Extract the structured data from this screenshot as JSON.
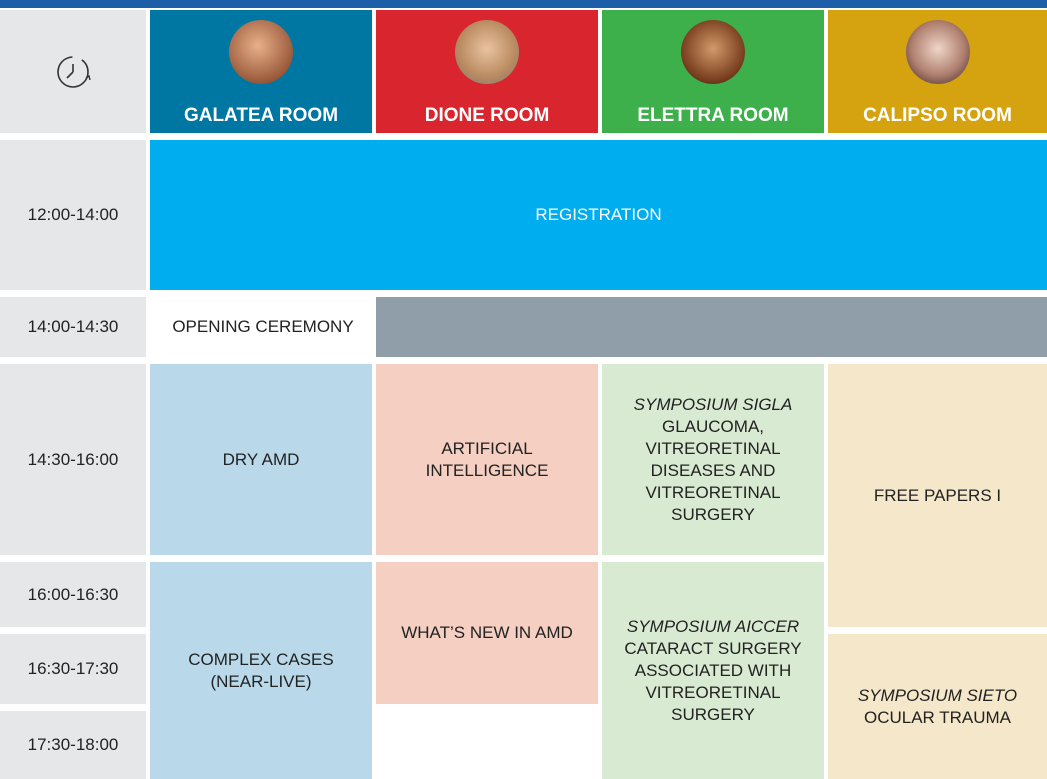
{
  "header": {
    "rooms": [
      "GALATEA ROOM",
      "DIONE ROOM",
      "ELETTRA ROOM",
      "CALIPSO ROOM"
    ]
  },
  "times": [
    "12:00-14:00",
    "14:00-14:30",
    "14:30-16:00",
    "16:00-16:30",
    "16:30-17:30",
    "17:30-18:00"
  ],
  "sessions": [
    {
      "lines": [
        "REGISTRATION"
      ]
    },
    {
      "lines": [
        "OPENING CEREMONY"
      ]
    },
    {
      "lines": [
        "DRY AMD"
      ]
    },
    {
      "lines": [
        "COMPLEX CASES",
        "(NEAR-LIVE)"
      ]
    },
    {
      "lines": [
        "ARTIFICIAL",
        "INTELLIGENCE"
      ]
    },
    {
      "lines": [
        "WHAT’S NEW IN AMD"
      ]
    },
    {
      "italic": "SYMPOSIUM SIGLA",
      "lines": [
        "GLAUCOMA,",
        "VITREORETINAL",
        "DISEASES AND",
        "VITREORETINAL",
        "SURGERY"
      ]
    },
    {
      "italic": "SYMPOSIUM AICCER",
      "lines": [
        "CATARACT SURGERY",
        "ASSOCIATED WITH",
        "VITREORETINAL",
        "SURGERY"
      ]
    },
    {
      "lines": [
        "FREE PAPERS I"
      ]
    },
    {
      "italic": "SYMPOSIUM SIETO",
      "lines": [
        "OCULAR TRAUMA"
      ]
    }
  ]
}
